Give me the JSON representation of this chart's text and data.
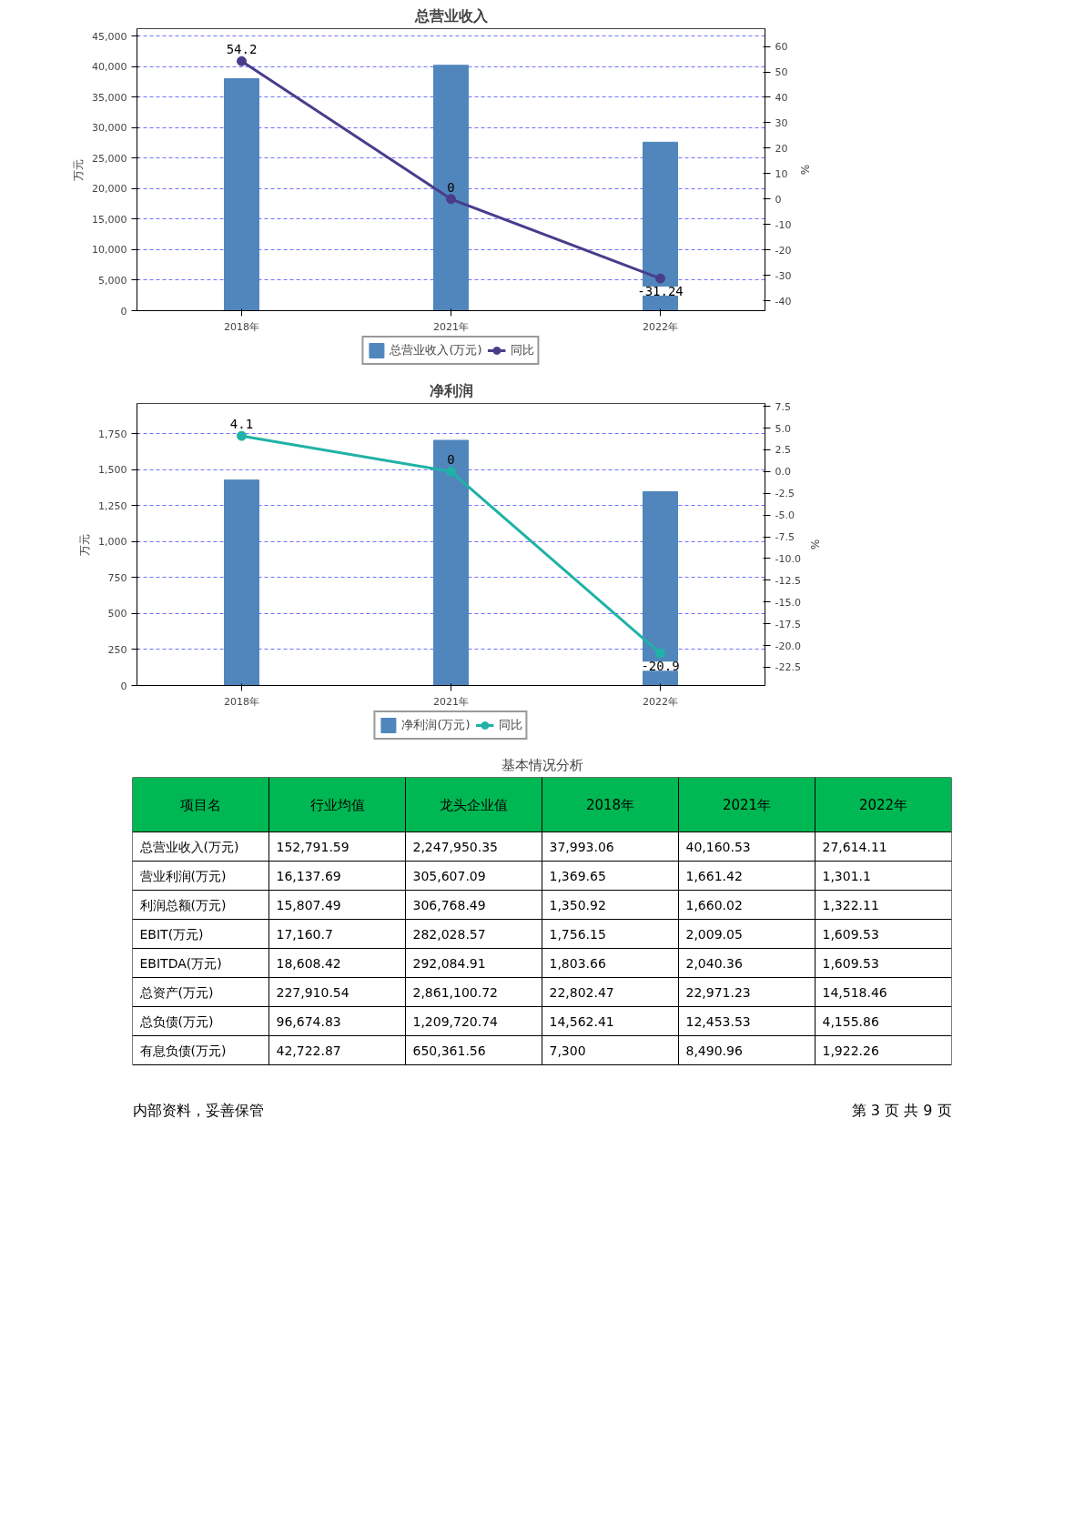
{
  "chart_data": [
    {
      "type": "bar",
      "title": "总营业收入",
      "categories": [
        "2018年",
        "2021年",
        "2022年"
      ],
      "ylabel": "万元",
      "y2label": "%",
      "series": [
        {
          "name": "总营业收入(万元)",
          "type": "bar",
          "color": "#5086bc",
          "values": [
            38000,
            40200,
            27600
          ]
        },
        {
          "name": "同比",
          "type": "line",
          "axis": "y2",
          "color": "#483d8b",
          "values": [
            54.2,
            0,
            -31.24
          ],
          "value_labels": [
            "54.2",
            "0",
            "-31.24"
          ]
        }
      ],
      "ylim": [
        0,
        46200
      ],
      "yticks": [
        0,
        {
          "value": 5000,
          "label": "5,000"
        },
        {
          "value": 10000,
          "label": "10,000"
        },
        {
          "value": 15000,
          "label": "15,000"
        },
        {
          "value": 20000,
          "label": "20,000"
        },
        {
          "value": 25000,
          "label": "25,000"
        },
        {
          "value": 30000,
          "label": "30,000"
        },
        {
          "value": 35000,
          "label": "35,000"
        },
        {
          "value": 40000,
          "label": "40,000"
        },
        {
          "value": 45000,
          "label": "45,000"
        }
      ],
      "y2lim": [
        -43.9,
        67
      ],
      "y2ticks": [
        -40,
        -30,
        -20,
        -10,
        0,
        10,
        20,
        30,
        40,
        50,
        60
      ],
      "grid": "y",
      "legend": "bottom",
      "marker": "circle",
      "line_style": "solid"
    },
    {
      "type": "bar",
      "title": "净利润",
      "categories": [
        "2018年",
        "2021年",
        "2022年"
      ],
      "ylabel": "万元",
      "y2label": "%",
      "series": [
        {
          "name": "净利润(万元)",
          "type": "bar",
          "color": "#5086bc",
          "values": [
            1428,
            1704,
            1347
          ]
        },
        {
          "name": "同比",
          "type": "line",
          "axis": "y2",
          "color": "#20b2a6",
          "values": [
            4.1,
            0,
            -20.9
          ],
          "value_labels": [
            "4.1",
            "0",
            "-20.9"
          ]
        }
      ],
      "ylim": [
        0,
        1960
      ],
      "yticks": [
        0,
        250,
        500,
        750,
        {
          "value": 1000,
          "label": "1,000"
        },
        {
          "value": 1250,
          "label": "1,250"
        },
        {
          "value": 1500,
          "label": "1,500"
        },
        {
          "value": 1750,
          "label": "1,750"
        }
      ],
      "y2lim": [
        -24.6,
        7.83
      ],
      "y2ticks": [
        {
          "value": -22.5,
          "label": "-22.5"
        },
        {
          "value": -20,
          "label": "-20.0"
        },
        -17.5,
        {
          "value": -15,
          "label": "-15.0"
        },
        -12.5,
        {
          "value": -10,
          "label": "-10.0"
        },
        -7.5,
        {
          "value": -5,
          "label": "-5.0"
        },
        -2.5,
        {
          "value": 0,
          "label": "0.0"
        },
        2.5,
        {
          "value": 5,
          "label": "5.0"
        },
        7.5
      ],
      "grid": "y",
      "legend": "bottom",
      "marker": "circle",
      "line_style": "solid"
    },
    {
      "type": "other",
      "title": "基本情况分析",
      "color": "#00b853",
      "categories": [
        "项目名",
        "行业均值",
        "龙头企业值",
        "2018年",
        "2021年",
        "2022年"
      ],
      "y_categories": [
        "总营业收入(万元)",
        "营业利润(万元)",
        "利润总额(万元)",
        "EBIT(万元)",
        "EBITDA(万元)",
        "总资产(万元)",
        "总负债(万元)",
        "有息负债(万元)"
      ],
      "cell_labels": [
        [
          "152,791.59",
          "2,247,950.35",
          "37,993.06",
          "40,160.53",
          "27,614.11"
        ],
        [
          "16,137.69",
          "305,607.09",
          "1,369.65",
          "1,661.42",
          "1,301.1"
        ],
        [
          "15,807.49",
          "306,768.49",
          "1,350.92",
          "1,660.02",
          "1,322.11"
        ],
        [
          "17,160.7",
          "282,028.57",
          "1,756.15",
          "2,009.05",
          "1,609.53"
        ],
        [
          "18,608.42",
          "292,084.91",
          "1,803.66",
          "2,040.36",
          "1,609.53"
        ],
        [
          "227,910.54",
          "2,861,100.72",
          "22,802.47",
          "22,971.23",
          "14,518.46"
        ],
        [
          "96,674.83",
          "1,209,720.74",
          "14,562.41",
          "12,453.53",
          "4,155.86"
        ],
        [
          "42,722.87",
          "650,361.56",
          "7,300",
          "8,490.96",
          "1,922.26"
        ]
      ],
      "annotations": [
        "内部资料，妥善保管",
        "第 3 页 共 9 页"
      ]
    }
  ]
}
